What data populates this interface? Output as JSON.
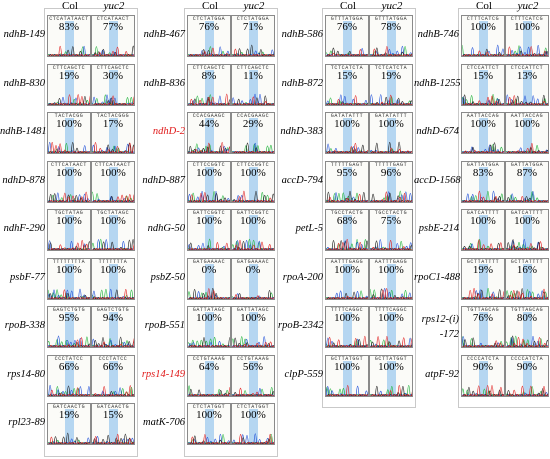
{
  "headers": {
    "col": "Col",
    "yuc2": "yuc2"
  },
  "columns": [
    {
      "rows": [
        {
          "label": "ndhB-149",
          "col": "83%",
          "yuc2": "77%",
          "seq_col": "CTCATATAACT",
          "seq_yuc2": "CTCATAACT"
        },
        {
          "label": "ndhB-830",
          "col": "19%",
          "yuc2": "30%",
          "seq_col": "CTTCAGCTC",
          "seq_yuc2": "CTTCAGCTC"
        },
        {
          "label": "ndhB-1481",
          "col": "100%",
          "yuc2": "17%",
          "seq_col": "TACTACGG",
          "seq_yuc2": "TACTACGGG"
        },
        {
          "label": "ndhD-878",
          "col": "100%",
          "yuc2": "100%",
          "seq_col": "CTTCATAACT",
          "seq_yuc2": "CTTCATAACT"
        },
        {
          "label": "ndhF-290",
          "col": "100%",
          "yuc2": "100%",
          "seq_col": "TGCTATAG",
          "seq_yuc2": "TGCTATAGC"
        },
        {
          "label": "psbF-77",
          "col": "100%",
          "yuc2": "100%",
          "seq_col": "TTTTTTTTA",
          "seq_yuc2": "TTTTTTTA"
        },
        {
          "label": "rpoB-338",
          "col": "95%",
          "yuc2": "94%",
          "seq_col": "GAGTCTGTG",
          "seq_yuc2": "GAGTCTGTG"
        },
        {
          "label": "rps14-80",
          "col": "66%",
          "yuc2": "66%",
          "seq_col": "CCCTATCC",
          "seq_yuc2": "CCCTATCC"
        },
        {
          "label": "rpl23-89",
          "col": "19%",
          "yuc2": "15%",
          "seq_col": "GATCAACTG",
          "seq_yuc2": "GATCAACTG"
        }
      ]
    },
    {
      "rows": [
        {
          "label": "ndhB-467",
          "col": "76%",
          "yuc2": "71%",
          "seq_col": "CTCTATGGA",
          "seq_yuc2": "CTCTATGGA"
        },
        {
          "label": "ndhB-836",
          "col": "8%",
          "yuc2": "11%",
          "seq_col": "CTTCAGCTC",
          "seq_yuc2": "CTTCAGCTC"
        },
        {
          "label": "ndhD-2",
          "red": true,
          "col": "44%",
          "yuc2": "29%",
          "seq_col": "CCACGAAGC",
          "seq_yuc2": "CCACGAAGC"
        },
        {
          "label": "ndhD-887",
          "col": "100%",
          "yuc2": "100%",
          "seq_col": "CTTCCGGTC",
          "seq_yuc2": "CTTCCGGTC"
        },
        {
          "label": "ndhG-50",
          "col": "100%",
          "yuc2": "100%",
          "seq_col": "GATTCGGTC",
          "seq_yuc2": "GATTCGGTC"
        },
        {
          "label": "psbZ-50",
          "col": "0%",
          "yuc2": "0%",
          "seq_col": "GATGAAAAC",
          "seq_yuc2": "GATGAAAAC"
        },
        {
          "label": "rpoB-551",
          "col": "100%",
          "yuc2": "100%",
          "seq_col": "GATTATAGC",
          "seq_yuc2": "GATTATAGC"
        },
        {
          "label": "rps14-149",
          "red": true,
          "col": "64%",
          "yuc2": "56%",
          "seq_col": "CCTGTAAAG",
          "seq_yuc2": "CCTGTAAAG"
        },
        {
          "label": "matK-706",
          "col": "100%",
          "yuc2": "100%",
          "seq_col": "CTCTATGGT",
          "seq_yuc2": "CTCTATGGT"
        }
      ]
    },
    {
      "rows": [
        {
          "label": "ndhB-586",
          "col": "76%",
          "yuc2": "78%",
          "seq_col": "GTTTATGGA",
          "seq_yuc2": "GTTTATGGA"
        },
        {
          "label": "ndhB-872",
          "col": "15%",
          "yuc2": "19%",
          "seq_col": "TCTCATCTA",
          "seq_yuc2": "TCTCATCTA"
        },
        {
          "label": "ndhD-383",
          "col": "100%",
          "yuc2": "100%",
          "seq_col": "GATATATTT",
          "seq_yuc2": "GATATATTT"
        },
        {
          "label": "accD-794",
          "col": "95%",
          "yuc2": "96%",
          "seq_col": "TTTTTGAGT",
          "seq_yuc2": "TTTTTGAGT"
        },
        {
          "label": "petL-5",
          "col": "68%",
          "yuc2": "75%",
          "seq_col": "TGCCTACTG",
          "seq_yuc2": "TGCCTACTG"
        },
        {
          "label": "rpoA-200",
          "col": "100%",
          "yuc2": "100%",
          "seq_col": "AATTTGAGG",
          "seq_yuc2": "AATTTGAGG"
        },
        {
          "label": "rpoB-2342",
          "col": "100%",
          "yuc2": "100%",
          "seq_col": "TTTTCAGGC",
          "seq_yuc2": "TTTTCAGGC"
        },
        {
          "label": "clpP-559",
          "col": "100%",
          "yuc2": "100%",
          "seq_col": "GCTTATGGT",
          "seq_yuc2": "GCTTATGGT"
        }
      ]
    },
    {
      "rows": [
        {
          "label": "ndhB-746",
          "col": "100%",
          "yuc2": "100%",
          "seq_col": "CTTTCATCG",
          "seq_yuc2": "CTTTCATCG"
        },
        {
          "label": "ndhB-1255",
          "col": "15%",
          "yuc2": "13%",
          "seq_col": "CTCCATTCT",
          "seq_yuc2": "CTCCATTCT"
        },
        {
          "label": "ndhD-674",
          "col": "100%",
          "yuc2": "100%",
          "seq_col": "AATTACCAG",
          "seq_yuc2": "AATTACCAG"
        },
        {
          "label": "accD-1568",
          "col": "83%",
          "yuc2": "87%",
          "seq_col": "GATTATGGA",
          "seq_yuc2": "GATTATGGA"
        },
        {
          "label": "psbE-214",
          "col": "100%",
          "yuc2": "100%",
          "seq_col": "GATCATTTT",
          "seq_yuc2": "GATCATTTT"
        },
        {
          "label": "rpoC1-488",
          "col": "19%",
          "yuc2": "16%",
          "seq_col": "GCTTATTTT",
          "seq_yuc2": "GCTTATTTT"
        },
        {
          "label": "rps12-(i)",
          "label2": "-172",
          "col": "76%",
          "yuc2": "80%",
          "seq_col": "TGTTAGCAG",
          "seq_yuc2": "TGTTAGCAG"
        },
        {
          "label": "atpF-92",
          "col": "90%",
          "yuc2": "90%",
          "seq_col": "CCCCATCTA",
          "seq_yuc2": "CCCCATCTA"
        }
      ]
    }
  ],
  "colors": {
    "trace_a": "#1fb33a",
    "trace_c": "#2050d8",
    "trace_g": "#222222",
    "trace_t": "#e02020",
    "highlight": "#a8cff0",
    "red_label": "#e01a1a"
  }
}
